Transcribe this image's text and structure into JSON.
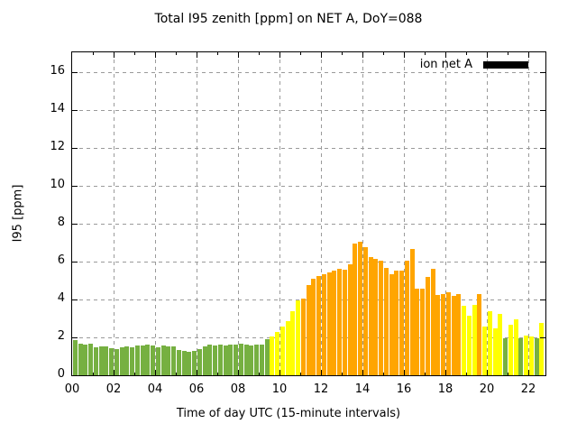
{
  "chart_data": {
    "type": "bar",
    "title": "Total I95 zenith [ppm] on NET A, DoY=088",
    "xlabel": "Time of day UTC (15-minute intervals)",
    "ylabel": "I95 [ppm]",
    "legend": [
      {
        "label": "ion net A",
        "swatch_color": "#000000"
      }
    ],
    "legend_position": "top-right-inside",
    "grid": true,
    "x_unit_minutes": 15,
    "xlim_hours": [
      0,
      22.875
    ],
    "ylim": [
      0,
      17.14
    ],
    "ytick_values": [
      0,
      2,
      4,
      6,
      8,
      10,
      12,
      14,
      16
    ],
    "xtick_hours": [
      0,
      2,
      4,
      6,
      8,
      10,
      12,
      14,
      16,
      18,
      20,
      22
    ],
    "xtick_labels": [
      "00",
      "02",
      "04",
      "06",
      "08",
      "10",
      "12",
      "14",
      "16",
      "18",
      "20",
      "22"
    ],
    "colors": {
      "green": "#76b041",
      "yellow": "#ffff00",
      "orange": "#ffa500",
      "grid": "#9a9a9a",
      "axis": "#000000"
    },
    "bars": [
      {
        "t": "00:00",
        "v": 1.85,
        "band": "green"
      },
      {
        "t": "00:15",
        "v": 1.65,
        "band": "green"
      },
      {
        "t": "00:30",
        "v": 1.62,
        "band": "green"
      },
      {
        "t": "00:45",
        "v": 1.69,
        "band": "green"
      },
      {
        "t": "01:00",
        "v": 1.49,
        "band": "green"
      },
      {
        "t": "01:15",
        "v": 1.54,
        "band": "green"
      },
      {
        "t": "01:30",
        "v": 1.54,
        "band": "green"
      },
      {
        "t": "01:45",
        "v": 1.43,
        "band": "green"
      },
      {
        "t": "02:00",
        "v": 1.39,
        "band": "green"
      },
      {
        "t": "02:15",
        "v": 1.46,
        "band": "green"
      },
      {
        "t": "02:30",
        "v": 1.54,
        "band": "green"
      },
      {
        "t": "02:45",
        "v": 1.49,
        "band": "green"
      },
      {
        "t": "03:00",
        "v": 1.59,
        "band": "green"
      },
      {
        "t": "03:15",
        "v": 1.59,
        "band": "green"
      },
      {
        "t": "03:30",
        "v": 1.62,
        "band": "green"
      },
      {
        "t": "03:45",
        "v": 1.59,
        "band": "green"
      },
      {
        "t": "04:00",
        "v": 1.49,
        "band": "green"
      },
      {
        "t": "04:15",
        "v": 1.59,
        "band": "green"
      },
      {
        "t": "04:30",
        "v": 1.54,
        "band": "green"
      },
      {
        "t": "04:45",
        "v": 1.54,
        "band": "green"
      },
      {
        "t": "05:00",
        "v": 1.35,
        "band": "green"
      },
      {
        "t": "05:15",
        "v": 1.28,
        "band": "green"
      },
      {
        "t": "05:30",
        "v": 1.25,
        "band": "green"
      },
      {
        "t": "05:45",
        "v": 1.28,
        "band": "green"
      },
      {
        "t": "06:00",
        "v": 1.4,
        "band": "green"
      },
      {
        "t": "06:15",
        "v": 1.5,
        "band": "green"
      },
      {
        "t": "06:30",
        "v": 1.6,
        "band": "green"
      },
      {
        "t": "06:45",
        "v": 1.55,
        "band": "green"
      },
      {
        "t": "07:00",
        "v": 1.6,
        "band": "green"
      },
      {
        "t": "07:15",
        "v": 1.55,
        "band": "green"
      },
      {
        "t": "07:30",
        "v": 1.62,
        "band": "green"
      },
      {
        "t": "07:45",
        "v": 1.6,
        "band": "green"
      },
      {
        "t": "08:00",
        "v": 1.65,
        "band": "green"
      },
      {
        "t": "08:15",
        "v": 1.6,
        "band": "green"
      },
      {
        "t": "08:30",
        "v": 1.55,
        "band": "green"
      },
      {
        "t": "08:45",
        "v": 1.6,
        "band": "green"
      },
      {
        "t": "09:00",
        "v": 1.62,
        "band": "green"
      },
      {
        "t": "09:15",
        "v": 1.9,
        "band": "green"
      },
      {
        "t": "09:30",
        "v": 2.03,
        "band": "yellow"
      },
      {
        "t": "09:45",
        "v": 2.3,
        "band": "yellow"
      },
      {
        "t": "10:00",
        "v": 2.58,
        "band": "yellow"
      },
      {
        "t": "10:15",
        "v": 2.85,
        "band": "yellow"
      },
      {
        "t": "10:30",
        "v": 3.4,
        "band": "yellow"
      },
      {
        "t": "10:45",
        "v": 3.95,
        "band": "yellow"
      },
      {
        "t": "11:00",
        "v": 4.05,
        "band": "orange"
      },
      {
        "t": "11:15",
        "v": 4.78,
        "band": "orange"
      },
      {
        "t": "11:30",
        "v": 5.1,
        "band": "orange"
      },
      {
        "t": "11:45",
        "v": 5.22,
        "band": "orange"
      },
      {
        "t": "12:00",
        "v": 5.33,
        "band": "orange"
      },
      {
        "t": "12:15",
        "v": 5.44,
        "band": "orange"
      },
      {
        "t": "12:30",
        "v": 5.52,
        "band": "orange"
      },
      {
        "t": "12:45",
        "v": 5.62,
        "band": "orange"
      },
      {
        "t": "13:00",
        "v": 5.57,
        "band": "orange"
      },
      {
        "t": "13:15",
        "v": 5.85,
        "band": "orange"
      },
      {
        "t": "13:30",
        "v": 6.97,
        "band": "orange"
      },
      {
        "t": "13:45",
        "v": 7.05,
        "band": "orange"
      },
      {
        "t": "14:00",
        "v": 6.78,
        "band": "orange"
      },
      {
        "t": "14:15",
        "v": 6.22,
        "band": "orange"
      },
      {
        "t": "14:30",
        "v": 6.16,
        "band": "orange"
      },
      {
        "t": "14:45",
        "v": 6.05,
        "band": "orange"
      },
      {
        "t": "15:00",
        "v": 5.67,
        "band": "orange"
      },
      {
        "t": "15:15",
        "v": 5.35,
        "band": "orange"
      },
      {
        "t": "15:30",
        "v": 5.51,
        "band": "orange"
      },
      {
        "t": "15:45",
        "v": 5.51,
        "band": "orange"
      },
      {
        "t": "16:00",
        "v": 6.06,
        "band": "orange"
      },
      {
        "t": "16:15",
        "v": 6.67,
        "band": "orange"
      },
      {
        "t": "16:30",
        "v": 4.56,
        "band": "orange"
      },
      {
        "t": "16:45",
        "v": 4.56,
        "band": "orange"
      },
      {
        "t": "17:00",
        "v": 5.17,
        "band": "orange"
      },
      {
        "t": "17:15",
        "v": 5.6,
        "band": "orange"
      },
      {
        "t": "17:30",
        "v": 4.25,
        "band": "orange"
      },
      {
        "t": "17:45",
        "v": 4.3,
        "band": "orange"
      },
      {
        "t": "18:00",
        "v": 4.38,
        "band": "orange"
      },
      {
        "t": "18:15",
        "v": 4.18,
        "band": "orange"
      },
      {
        "t": "18:30",
        "v": 4.3,
        "band": "orange"
      },
      {
        "t": "18:45",
        "v": 3.67,
        "band": "yellow"
      },
      {
        "t": "19:00",
        "v": 3.15,
        "band": "yellow"
      },
      {
        "t": "19:15",
        "v": 3.7,
        "band": "yellow"
      },
      {
        "t": "19:30",
        "v": 4.3,
        "band": "orange"
      },
      {
        "t": "19:45",
        "v": 2.59,
        "band": "yellow"
      },
      {
        "t": "20:00",
        "v": 3.38,
        "band": "yellow"
      },
      {
        "t": "20:15",
        "v": 2.48,
        "band": "yellow"
      },
      {
        "t": "20:30",
        "v": 3.22,
        "band": "yellow"
      },
      {
        "t": "20:45",
        "v": 1.95,
        "band": "green"
      },
      {
        "t": "21:00",
        "v": 2.67,
        "band": "yellow"
      },
      {
        "t": "21:15",
        "v": 2.95,
        "band": "yellow"
      },
      {
        "t": "21:30",
        "v": 1.97,
        "band": "green"
      },
      {
        "t": "21:45",
        "v": 2.08,
        "band": "yellow"
      },
      {
        "t": "22:00",
        "v": 2.03,
        "band": "yellow"
      },
      {
        "t": "22:15",
        "v": 1.97,
        "band": "green"
      },
      {
        "t": "22:30",
        "v": 2.76,
        "band": "yellow"
      }
    ]
  }
}
